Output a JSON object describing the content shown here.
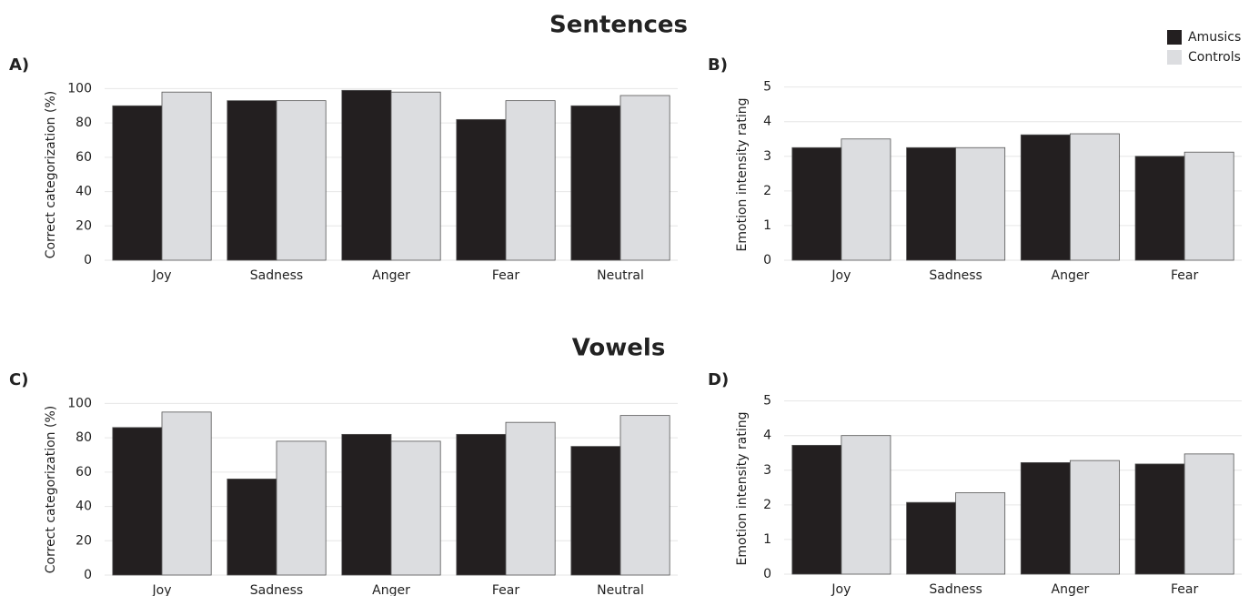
{
  "headings": [
    "Sentences",
    "Vowels"
  ],
  "chart_data": [
    {
      "type": "bar",
      "panel": "A)",
      "ylabel": "Correct categorization (%)",
      "categories": [
        "Joy",
        "Sadness",
        "Anger",
        "Fear",
        "Neutral"
      ],
      "series": [
        {
          "name": "Amusics",
          "color": "#231f20",
          "values": [
            90,
            93,
            99,
            82,
            90
          ]
        },
        {
          "name": "Controls",
          "color": "#dcdde0",
          "values": [
            98,
            93,
            98,
            93,
            96
          ]
        }
      ],
      "ylim": [
        0,
        105
      ],
      "yticks": [
        0,
        20,
        40,
        60,
        80,
        100
      ],
      "grid": true
    },
    {
      "type": "bar",
      "panel": "B)",
      "ylabel": "Emotion intensity rating",
      "categories": [
        "Joy",
        "Sadness",
        "Anger",
        "Fear"
      ],
      "series": [
        {
          "name": "Amusics",
          "color": "#231f20",
          "values": [
            3.25,
            3.25,
            3.62,
            3.0
          ]
        },
        {
          "name": "Controls",
          "color": "#dcdde0",
          "values": [
            3.5,
            3.25,
            3.65,
            3.12
          ]
        }
      ],
      "ylim": [
        0,
        5.2
      ],
      "yticks": [
        0,
        1,
        2,
        3,
        4,
        5
      ],
      "grid": true,
      "legend": "upper right"
    },
    {
      "type": "bar",
      "panel": "C)",
      "ylabel": "Correct categorization (%)",
      "categories": [
        "Joy",
        "Sadness",
        "Anger",
        "Fear",
        "Neutral"
      ],
      "series": [
        {
          "name": "Amusics",
          "color": "#231f20",
          "values": [
            86,
            56,
            82,
            82,
            75
          ]
        },
        {
          "name": "Controls",
          "color": "#dcdde0",
          "values": [
            95,
            78,
            78,
            89,
            93
          ]
        }
      ],
      "ylim": [
        0,
        105
      ],
      "yticks": [
        0,
        20,
        40,
        60,
        80,
        100
      ],
      "grid": true
    },
    {
      "type": "bar",
      "panel": "D)",
      "ylabel": "Emotion intensity rating",
      "categories": [
        "Joy",
        "Sadness",
        "Anger",
        "Fear"
      ],
      "series": [
        {
          "name": "Amusics",
          "color": "#231f20",
          "values": [
            3.72,
            2.07,
            3.22,
            3.18
          ]
        },
        {
          "name": "Controls",
          "color": "#dcdde0",
          "values": [
            4.0,
            2.35,
            3.28,
            3.47
          ]
        }
      ],
      "ylim": [
        0,
        5.2
      ],
      "yticks": [
        0,
        1,
        2,
        3,
        4,
        5
      ],
      "grid": true
    }
  ]
}
